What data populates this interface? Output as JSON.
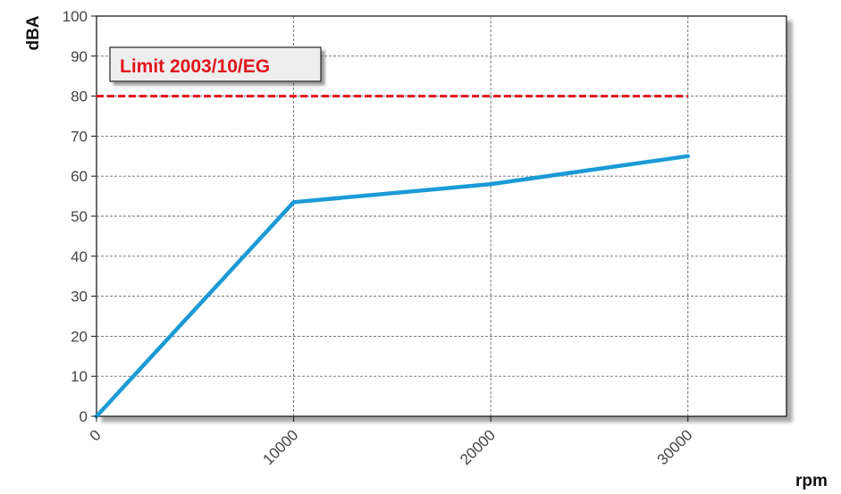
{
  "chart_data": {
    "type": "line",
    "title": "",
    "xlabel": "rpm",
    "ylabel": "dBA",
    "xlim": [
      0,
      35000
    ],
    "ylim": [
      0,
      100
    ],
    "x_ticks": [
      "0",
      "10000",
      "20000",
      "30000"
    ],
    "x_tick_values": [
      0,
      10000,
      20000,
      30000
    ],
    "y_ticks": [
      "0",
      "10",
      "20",
      "30",
      "40",
      "50",
      "60",
      "70",
      "80",
      "90",
      "100"
    ],
    "y_tick_values": [
      0,
      10,
      20,
      30,
      40,
      50,
      60,
      70,
      80,
      90,
      100
    ],
    "grid": true,
    "series": [
      {
        "x": [
          0,
          10000,
          20000,
          30000
        ],
        "y": [
          0,
          53.5,
          58,
          65
        ],
        "color": "#1b9ad6"
      },
      {
        "x": [
          0,
          30000
        ],
        "y": [
          80,
          80
        ],
        "color": "#e0161c",
        "dashed": true
      }
    ],
    "annotation": {
      "text": "Limit 2003/10/EG",
      "color": "#e0161c"
    }
  }
}
